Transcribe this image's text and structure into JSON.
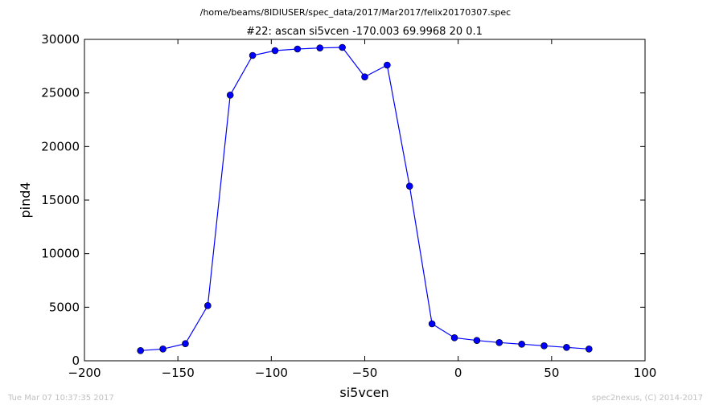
{
  "figure": {
    "suptitle": "/home/beams/8IDIUSER/spec_data/2017/Mar2017/felix20170307.spec",
    "footer_left": "Tue Mar 07 10:37:35 2017",
    "footer_right": "spec2nexus, (C) 2014-2017"
  },
  "chart_data": {
    "type": "line",
    "title": "#22: ascan  si5vcen -170.003 69.9968  20 0.1",
    "xlabel": "si5vcen",
    "ylabel": "pind4",
    "xlim": [
      -200,
      100
    ],
    "ylim": [
      0,
      30000
    ],
    "xticks": [
      -200,
      -150,
      -100,
      -50,
      0,
      50,
      100
    ],
    "xtick_labels": [
      "−200",
      "−150",
      "−100",
      "−50",
      "0",
      "50",
      "100"
    ],
    "yticks": [
      0,
      5000,
      10000,
      15000,
      20000,
      25000,
      30000
    ],
    "ytick_labels": [
      "0",
      "5000",
      "10000",
      "15000",
      "20000",
      "25000",
      "30000"
    ],
    "grid": false,
    "series": [
      {
        "color": "#0000ff",
        "marker": "circle",
        "x": [
          -170.0,
          -158.0,
          -146.0,
          -134.0,
          -122.0,
          -110.0,
          -98.0,
          -86.0,
          -74.0,
          -62.0,
          -50.0,
          -38.0,
          -26.0,
          -14.0,
          -2.0,
          10.0,
          22.0,
          34.0,
          46.0,
          58.0,
          70.0
        ],
        "y": [
          950,
          1100,
          1600,
          5150,
          24800,
          28500,
          28950,
          29100,
          29200,
          29250,
          26500,
          27600,
          16300,
          3450,
          2150,
          1900,
          1700,
          1550,
          1400,
          1250,
          1100
        ]
      }
    ]
  }
}
